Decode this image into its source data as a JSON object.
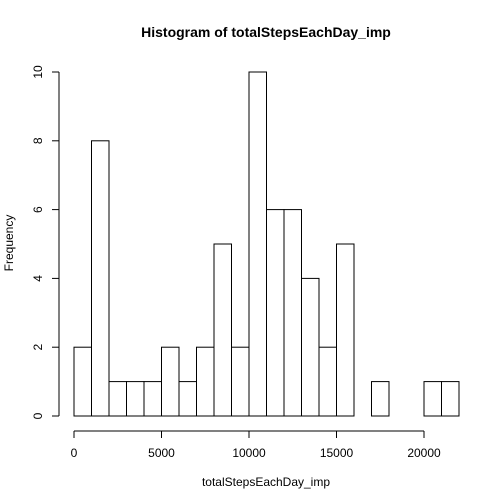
{
  "chart_data": {
    "type": "bar",
    "title": "Histogram of totalStepsEachDay_imp",
    "xlabel": "totalStepsEachDay_imp",
    "ylabel": "Frequency",
    "xlim": [
      0,
      22000
    ],
    "ylim": [
      0,
      10
    ],
    "bin_width": 1000,
    "bin_starts": [
      0,
      1000,
      2000,
      3000,
      4000,
      5000,
      6000,
      7000,
      8000,
      9000,
      10000,
      11000,
      12000,
      13000,
      14000,
      15000,
      16000,
      17000,
      18000,
      19000,
      20000,
      21000
    ],
    "values": [
      2,
      8,
      1,
      1,
      1,
      2,
      1,
      2,
      5,
      2,
      10,
      6,
      6,
      4,
      2,
      5,
      0,
      1,
      0,
      0,
      1,
      1
    ],
    "x_ticks": [
      0,
      5000,
      10000,
      15000,
      20000
    ],
    "x_tick_labels": [
      "0",
      "5000",
      "10000",
      "15000",
      "20000"
    ],
    "y_ticks": [
      0,
      2,
      4,
      6,
      8,
      10
    ],
    "y_tick_labels": [
      "0",
      "2",
      "4",
      "6",
      "8",
      "10"
    ],
    "grid": false,
    "legend": "none",
    "bar_fill": "#ffffff",
    "bar_stroke": "#000000"
  }
}
